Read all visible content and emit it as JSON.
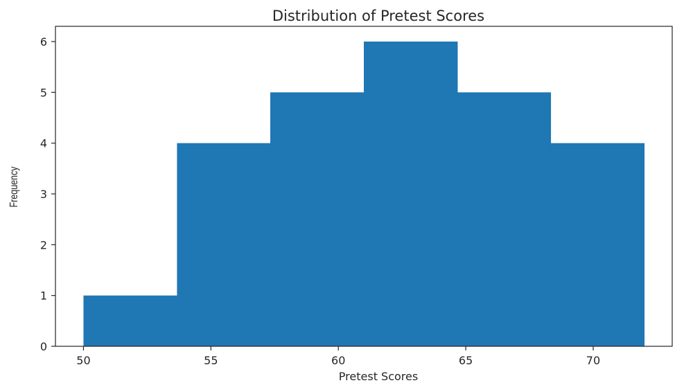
{
  "chart_data": {
    "type": "bar",
    "subtype": "histogram",
    "title": "Distribution of Pretest Scores",
    "xlabel": "Pretest Scores",
    "ylabel": "Frequency",
    "xlim": [
      48.9,
      73.1
    ],
    "ylim": [
      0,
      6.3
    ],
    "bin_edges": [
      50.0,
      53.67,
      57.33,
      61.0,
      64.67,
      68.33,
      72.0
    ],
    "values": [
      1,
      4,
      5,
      6,
      5,
      4
    ],
    "xticks": [
      50,
      55,
      60,
      65,
      70
    ],
    "yticks": [
      0,
      1,
      2,
      3,
      4,
      5,
      6
    ],
    "bar_color": "#1f77b4",
    "grid": false,
    "legend": "none"
  }
}
